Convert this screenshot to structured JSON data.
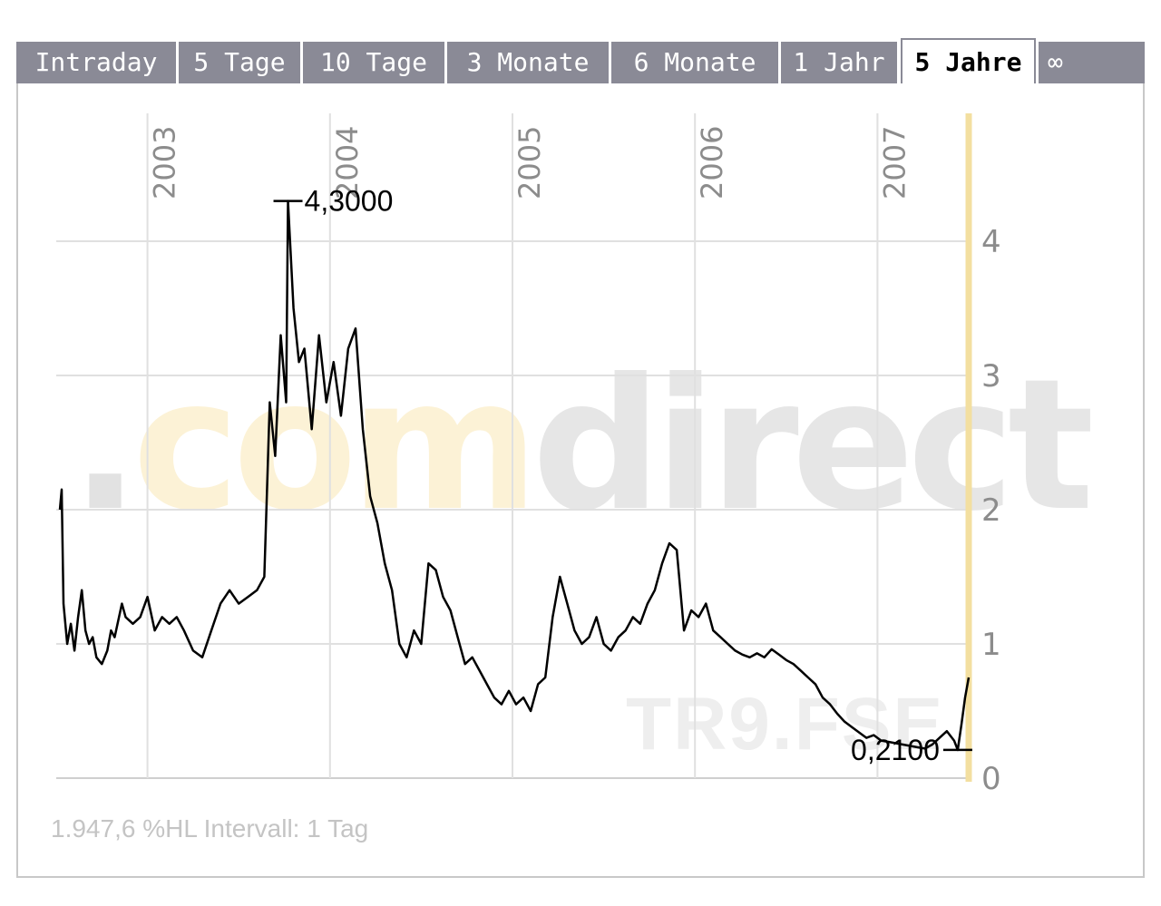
{
  "tabs": [
    {
      "label": "Intraday",
      "active": false
    },
    {
      "label": "5 Tage",
      "active": false
    },
    {
      "label": "10 Tage",
      "active": false
    },
    {
      "label": "3 Monate",
      "active": false
    },
    {
      "label": "6 Monate",
      "active": false
    },
    {
      "label": "1 Jahr",
      "active": false
    },
    {
      "label": "5 Jahre",
      "active": true
    },
    {
      "label": "∞",
      "active": false
    }
  ],
  "watermark": {
    "dot": ".",
    "com": "com",
    "direct": "direct",
    "symbol": "TR9.FSE"
  },
  "footer": {
    "interval_text": "1.947,6 %HL Intervall: 1 Tag"
  },
  "colors": {
    "line": "#000000",
    "grid": "#e0e0e0",
    "right_axis": "#f3dfa0",
    "tab_bg": "#8a8a96"
  },
  "chart_data": {
    "type": "line",
    "x_year_labels": [
      "2003",
      "2004",
      "2005",
      "2006",
      "2007"
    ],
    "y_tick_labels": [
      "0",
      "1",
      "2",
      "3",
      "4"
    ],
    "ylim": [
      0,
      4.8
    ],
    "xlim": [
      2002.5,
      2007.5
    ],
    "grid": true,
    "high_label": "4,3000",
    "low_label": "0,2100",
    "high": {
      "x": 2003.77,
      "y": 4.3
    },
    "low": {
      "x": 2007.44,
      "y": 0.21
    },
    "series": [
      {
        "x": [
          2002.52,
          2002.53,
          2002.54,
          2002.56,
          2002.58,
          2002.6,
          2002.62,
          2002.64,
          2002.66,
          2002.68,
          2002.7,
          2002.72,
          2002.75,
          2002.78,
          2002.8,
          2002.82,
          2002.86,
          2002.88,
          2002.92,
          2002.96,
          2003.0,
          2003.04,
          2003.08,
          2003.12,
          2003.16,
          2003.2,
          2003.25,
          2003.3,
          2003.35,
          2003.4,
          2003.45,
          2003.5,
          2003.55,
          2003.6,
          2003.64,
          2003.67,
          2003.7,
          2003.73,
          2003.76,
          2003.77,
          2003.8,
          2003.83,
          2003.86,
          2003.9,
          2003.94,
          2003.98,
          2004.02,
          2004.06,
          2004.1,
          2004.14,
          2004.18,
          2004.22,
          2004.26,
          2004.3,
          2004.34,
          2004.38,
          2004.42,
          2004.46,
          2004.5,
          2004.54,
          2004.58,
          2004.62,
          2004.66,
          2004.7,
          2004.74,
          2004.78,
          2004.82,
          2004.86,
          2004.9,
          2004.94,
          2004.98,
          2005.02,
          2005.06,
          2005.1,
          2005.14,
          2005.18,
          2005.22,
          2005.26,
          2005.3,
          2005.34,
          2005.38,
          2005.42,
          2005.46,
          2005.5,
          2005.54,
          2005.58,
          2005.62,
          2005.66,
          2005.7,
          2005.74,
          2005.78,
          2005.82,
          2005.86,
          2005.9,
          2005.94,
          2005.98,
          2006.02,
          2006.06,
          2006.1,
          2006.14,
          2006.18,
          2006.22,
          2006.26,
          2006.3,
          2006.34,
          2006.38,
          2006.42,
          2006.46,
          2006.5,
          2006.54,
          2006.58,
          2006.62,
          2006.66,
          2006.7,
          2006.74,
          2006.78,
          2006.82,
          2006.86,
          2006.9,
          2006.94,
          2006.98,
          2007.02,
          2007.06,
          2007.1,
          2007.14,
          2007.18,
          2007.22,
          2007.26,
          2007.3,
          2007.34,
          2007.38,
          2007.42,
          2007.44,
          2007.46,
          2007.48,
          2007.5
        ],
        "y": [
          2.0,
          2.15,
          1.3,
          1.0,
          1.15,
          0.95,
          1.2,
          1.4,
          1.1,
          1.0,
          1.05,
          0.9,
          0.85,
          0.95,
          1.1,
          1.05,
          1.3,
          1.2,
          1.15,
          1.2,
          1.35,
          1.1,
          1.2,
          1.15,
          1.2,
          1.1,
          0.95,
          0.9,
          1.1,
          1.3,
          1.4,
          1.3,
          1.35,
          1.4,
          1.5,
          2.8,
          2.4,
          3.3,
          2.8,
          4.3,
          3.5,
          3.1,
          3.2,
          2.6,
          3.3,
          2.8,
          3.1,
          2.7,
          3.2,
          3.35,
          2.6,
          2.1,
          1.9,
          1.6,
          1.4,
          1.0,
          0.9,
          1.1,
          1.0,
          1.6,
          1.55,
          1.35,
          1.25,
          1.05,
          0.85,
          0.9,
          0.8,
          0.7,
          0.6,
          0.55,
          0.65,
          0.55,
          0.6,
          0.5,
          0.7,
          0.75,
          1.2,
          1.5,
          1.3,
          1.1,
          1.0,
          1.05,
          1.2,
          1.0,
          0.95,
          1.05,
          1.1,
          1.2,
          1.15,
          1.3,
          1.4,
          1.6,
          1.75,
          1.7,
          1.1,
          1.25,
          1.2,
          1.3,
          1.1,
          1.05,
          1.0,
          0.95,
          0.92,
          0.9,
          0.93,
          0.9,
          0.96,
          0.92,
          0.88,
          0.85,
          0.8,
          0.75,
          0.7,
          0.6,
          0.55,
          0.48,
          0.42,
          0.38,
          0.34,
          0.3,
          0.32,
          0.28,
          0.27,
          0.26,
          0.25,
          0.24,
          0.23,
          0.22,
          0.25,
          0.3,
          0.35,
          0.28,
          0.21,
          0.4,
          0.6,
          0.75
        ]
      }
    ]
  }
}
